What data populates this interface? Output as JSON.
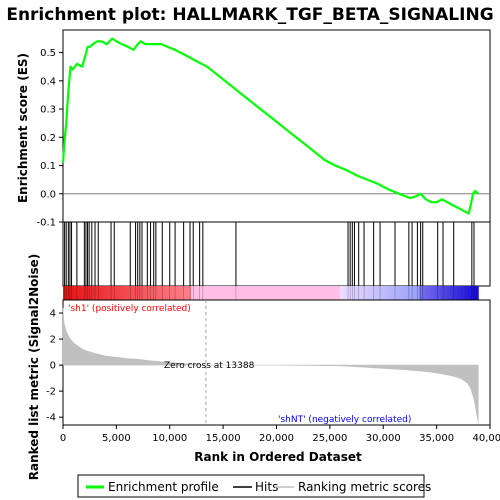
{
  "chart_data": {
    "type": "line",
    "title": "Enrichment plot: HALLMARK_TGF_BETA_SIGNALING",
    "es_panel": {
      "ylabel": "Enrichment score (ES)",
      "ylim": [
        -0.1,
        0.58
      ],
      "yticks": [
        "-0.1",
        "0.0",
        "0.1",
        "0.2",
        "0.3",
        "0.4",
        "0.5"
      ],
      "ytick_values": [
        -0.1,
        0.0,
        0.1,
        0.2,
        0.3,
        0.4,
        0.5
      ],
      "series": [
        {
          "name": "Enrichment profile",
          "color": "#00ff00",
          "x": [
            0,
            150,
            300,
            500,
            700,
            900,
            1300,
            1800,
            2100,
            2300,
            2500,
            2800,
            3200,
            3600,
            4100,
            4600,
            5000,
            5500,
            6100,
            6600,
            7000,
            7300,
            7700,
            8200,
            8600,
            9200,
            9800,
            10500,
            11500,
            12500,
            13500,
            14500,
            15500,
            16500,
            17500,
            18500,
            19500,
            20500,
            21500,
            22500,
            23500,
            24500,
            25500,
            26500,
            27500,
            28500,
            29500,
            30500,
            31500,
            32500,
            33000,
            33500,
            34000,
            34500,
            35000,
            35500,
            36000,
            36500,
            37000,
            37500,
            38000,
            38200,
            38400,
            38600,
            38900
          ],
          "y": [
            0.11,
            0.19,
            0.25,
            0.36,
            0.45,
            0.44,
            0.46,
            0.45,
            0.49,
            0.52,
            0.52,
            0.53,
            0.54,
            0.54,
            0.53,
            0.55,
            0.54,
            0.53,
            0.52,
            0.51,
            0.53,
            0.54,
            0.53,
            0.53,
            0.53,
            0.53,
            0.52,
            0.51,
            0.49,
            0.47,
            0.45,
            0.42,
            0.39,
            0.36,
            0.33,
            0.3,
            0.27,
            0.24,
            0.21,
            0.18,
            0.15,
            0.12,
            0.1,
            0.085,
            0.065,
            0.05,
            0.035,
            0.015,
            0.0,
            -0.015,
            -0.01,
            0.0,
            -0.02,
            -0.03,
            -0.03,
            -0.02,
            -0.03,
            -0.04,
            -0.05,
            -0.06,
            -0.07,
            -0.04,
            0.0,
            0.01,
            0.0
          ]
        }
      ]
    },
    "hits_panel": {
      "series_name": "Hits",
      "hit_positions": [
        150,
        300,
        500,
        650,
        800,
        1300,
        2000,
        2150,
        2300,
        2450,
        2700,
        3000,
        3300,
        4500,
        4800,
        6300,
        6800,
        7000,
        7200,
        7400,
        7900,
        8200,
        8500,
        8700,
        9300,
        10000,
        10500,
        11300,
        11900,
        12200,
        12800,
        13100,
        16200,
        26700,
        26900,
        27100,
        27300,
        27700,
        28200,
        29100,
        29700,
        31100,
        32400,
        32700,
        33200,
        33500,
        33700,
        35100,
        35600,
        36600,
        38300,
        38500
      ]
    },
    "metric_panel": {
      "ylabel": "Ranked list metric (Signal2Noise)",
      "ylim": [
        -4.6,
        5.0
      ],
      "yticks": [
        "-4",
        "-2",
        "0",
        "2",
        "4"
      ],
      "ytick_values": [
        -4,
        -2,
        0,
        2,
        4
      ],
      "series_name": "Ranking metric scores",
      "color": "#c0c0c0",
      "x": [
        0,
        100,
        300,
        600,
        1000,
        1500,
        2000,
        3000,
        4000,
        5000,
        6000,
        7000,
        8000,
        9000,
        10000,
        11000,
        12000,
        13388,
        15000,
        20000,
        26000,
        28000,
        30000,
        32000,
        34000,
        35000,
        36000,
        36800,
        37400,
        37900,
        38200,
        38500,
        38700,
        38900
      ],
      "y": [
        4.4,
        3.2,
        2.6,
        2.1,
        1.7,
        1.4,
        1.15,
        0.9,
        0.7,
        0.6,
        0.5,
        0.45,
        0.35,
        0.28,
        0.2,
        0.14,
        0.08,
        0.0,
        0.0,
        0.0,
        -0.05,
        -0.15,
        -0.25,
        -0.35,
        -0.5,
        -0.6,
        -0.75,
        -0.9,
        -1.1,
        -1.4,
        -1.8,
        -2.6,
        -3.5,
        -4.4
      ],
      "annotations": {
        "positive": "'sh1' (positively correlated)",
        "negative": "'shNT' (negatively correlated)",
        "zero_cross": "Zero cross at 13388",
        "zero_cross_x": 13388,
        "positive_color": "#ff0000",
        "negative_color": "#0000ff"
      }
    },
    "xlabel": "Rank in Ordered Dataset",
    "xlim": [
      0,
      40000
    ],
    "xticks": [
      "0",
      "5,000",
      "10,000",
      "15,000",
      "20,000",
      "25,000",
      "30,000",
      "35,000",
      "40,000"
    ],
    "xtick_values": [
      0,
      5000,
      10000,
      15000,
      20000,
      25000,
      30000,
      35000,
      40000
    ],
    "n_ranked": 38900,
    "legend": {
      "placement": "bottom",
      "entries": [
        {
          "label": "Enrichment profile",
          "color": "#00ff00"
        },
        {
          "label": "Hits",
          "color": "#000000"
        },
        {
          "label": "Ranking metric scores",
          "color": "#c0c0c0"
        }
      ]
    }
  }
}
